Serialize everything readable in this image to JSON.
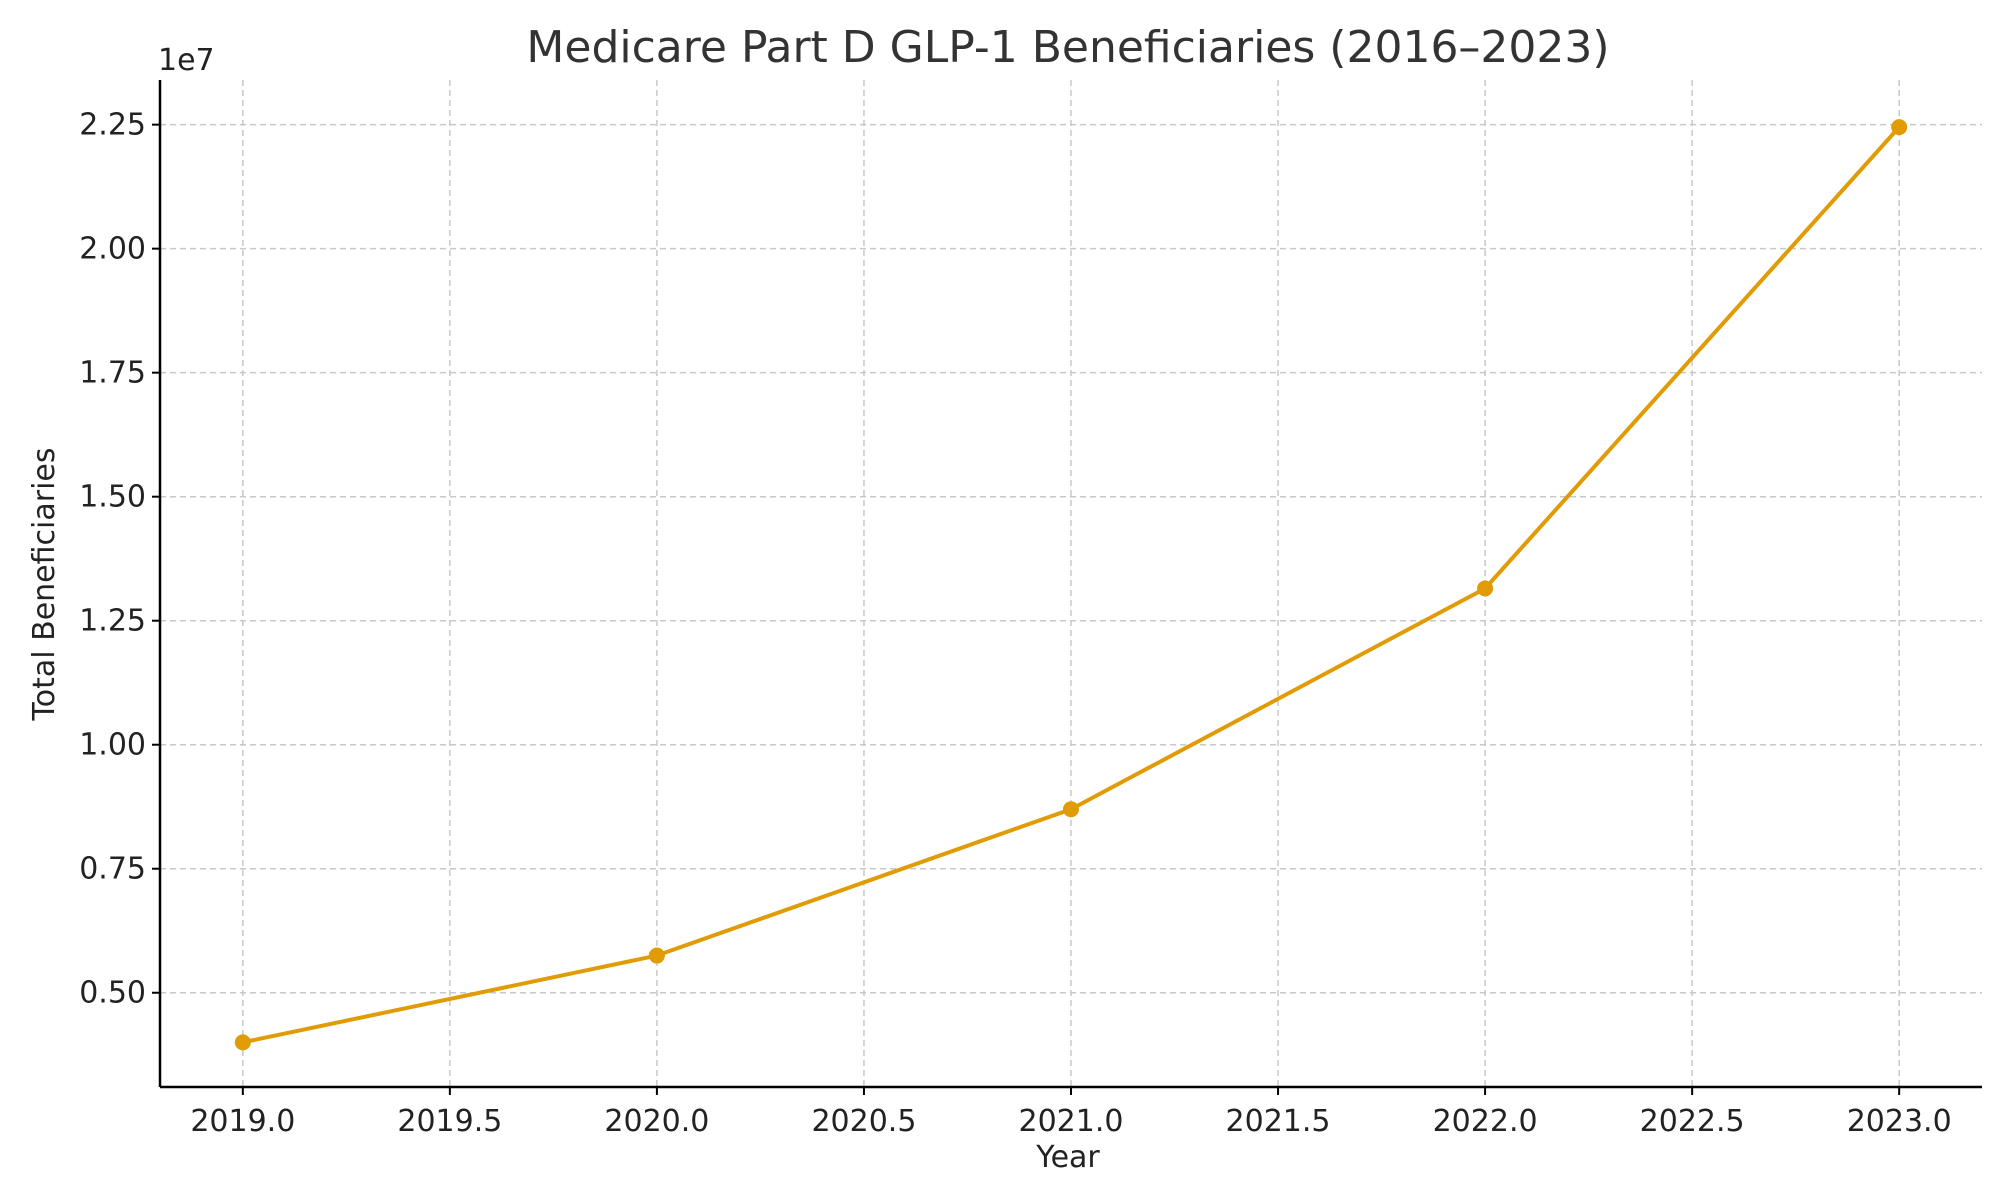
{
  "chart_data": {
    "type": "line",
    "title": "Medicare Part D GLP-1 Beneficiaries (2016–2023)",
    "xlabel": "Year",
    "ylabel": "Total Beneficiaries",
    "y_offset_label": "1e7",
    "xlim": [
      2018.8,
      2023.2
    ],
    "ylim": [
      3100000,
      23400000
    ],
    "x_ticks": [
      2019.0,
      2019.5,
      2020.0,
      2020.5,
      2021.0,
      2021.5,
      2022.0,
      2022.5,
      2023.0
    ],
    "x_tick_labels": [
      "2019.0",
      "2019.5",
      "2020.0",
      "2020.5",
      "2021.0",
      "2021.5",
      "2022.0",
      "2022.5",
      "2023.0"
    ],
    "y_ticks": [
      5000000,
      7500000,
      10000000,
      12500000,
      15000000,
      17500000,
      20000000,
      22500000
    ],
    "y_tick_labels": [
      "0.50",
      "0.75",
      "1.00",
      "1.25",
      "1.50",
      "1.75",
      "2.00",
      "2.25"
    ],
    "grid": true,
    "legend": "none",
    "series": [
      {
        "color": "#E09B05",
        "x": [
          2019,
          2020,
          2021,
          2022,
          2023
        ],
        "y": [
          4000000,
          5750000,
          8700000,
          13150000,
          22450000
        ]
      }
    ]
  }
}
